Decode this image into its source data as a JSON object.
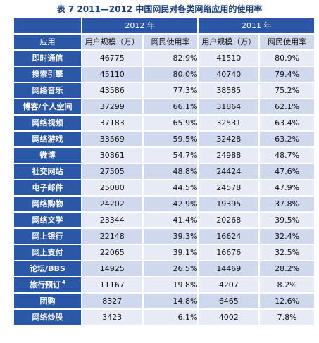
{
  "caption": "表 7    2011—2012 中国网民对各类网络应用的使用率",
  "columns": {
    "year_2012": "2012 年",
    "year_2011": "2011 年",
    "app": "应用",
    "users_2012": "用户规模（万）",
    "rate_2012": "网民使用率",
    "users_2011": "用户规模（万）",
    "rate_2011": "网民使用率"
  },
  "rows": [
    {
      "name": "即时通信",
      "sup": "",
      "u2012": "46775",
      "r2012": "82.9%",
      "u2011": "41510",
      "r2011": "80.9%"
    },
    {
      "name": "搜索引擎",
      "sup": "",
      "u2012": "45110",
      "r2012": "80.0%",
      "u2011": "40740",
      "r2011": "79.4%"
    },
    {
      "name": "网络音乐",
      "sup": "",
      "u2012": "43586",
      "r2012": "77.3%",
      "u2011": "38585",
      "r2011": "75.2%"
    },
    {
      "name": "博客/个人空间",
      "sup": "",
      "u2012": "37299",
      "r2012": "66.1%",
      "u2011": "31864",
      "r2011": "62.1%"
    },
    {
      "name": "网络视频",
      "sup": "",
      "u2012": "37183",
      "r2012": "65.9%",
      "u2011": "32531",
      "r2011": "63.4%"
    },
    {
      "name": "网络游戏",
      "sup": "",
      "u2012": "33569",
      "r2012": "59.5%",
      "u2011": "32428",
      "r2011": "63.2%"
    },
    {
      "name": "微博",
      "sup": "",
      "u2012": "30861",
      "r2012": "54.7%",
      "u2011": "24988",
      "r2011": "48.7%"
    },
    {
      "name": "社交网站",
      "sup": "",
      "u2012": "27505",
      "r2012": "48.8%",
      "u2011": "24424",
      "r2011": "47.6%"
    },
    {
      "name": "电子邮件",
      "sup": "",
      "u2012": "25080",
      "r2012": "44.5%",
      "u2011": "24578",
      "r2011": "47.9%"
    },
    {
      "name": "网络购物",
      "sup": "",
      "u2012": "24202",
      "r2012": "42.9%",
      "u2011": "19395",
      "r2011": "37.8%"
    },
    {
      "name": "网络文学",
      "sup": "",
      "u2012": "23344",
      "r2012": "41.4%",
      "u2011": "20268",
      "r2011": "39.5%"
    },
    {
      "name": "网上银行",
      "sup": "",
      "u2012": "22148",
      "r2012": "39.3%",
      "u2011": "16624",
      "r2011": "32.4%"
    },
    {
      "name": "网上支付",
      "sup": "",
      "u2012": "22065",
      "r2012": "39.1%",
      "u2011": "16676",
      "r2011": "32.5%"
    },
    {
      "name": "论坛/BBS",
      "sup": "",
      "u2012": "14925",
      "r2012": "26.5%",
      "u2011": "14469",
      "r2011": "28.2%"
    },
    {
      "name": "旅行预订",
      "sup": "4",
      "u2012": "11167",
      "r2012": "19.8%",
      "u2011": "4207",
      "r2011": "8.2%"
    },
    {
      "name": "团购",
      "sup": "",
      "u2012": "8327",
      "r2012": "14.8%",
      "u2011": "6465",
      "r2011": "12.6%"
    },
    {
      "name": "网络炒股",
      "sup": "",
      "u2012": "3423",
      "r2012": "6.1%",
      "u2011": "4002",
      "r2011": "7.8%"
    }
  ],
  "colors": {
    "header_blue": "#2b58a6",
    "row_dark": "#cfd8ec",
    "row_light": "#e6ebf6",
    "caption": "#1a3f7a"
  }
}
